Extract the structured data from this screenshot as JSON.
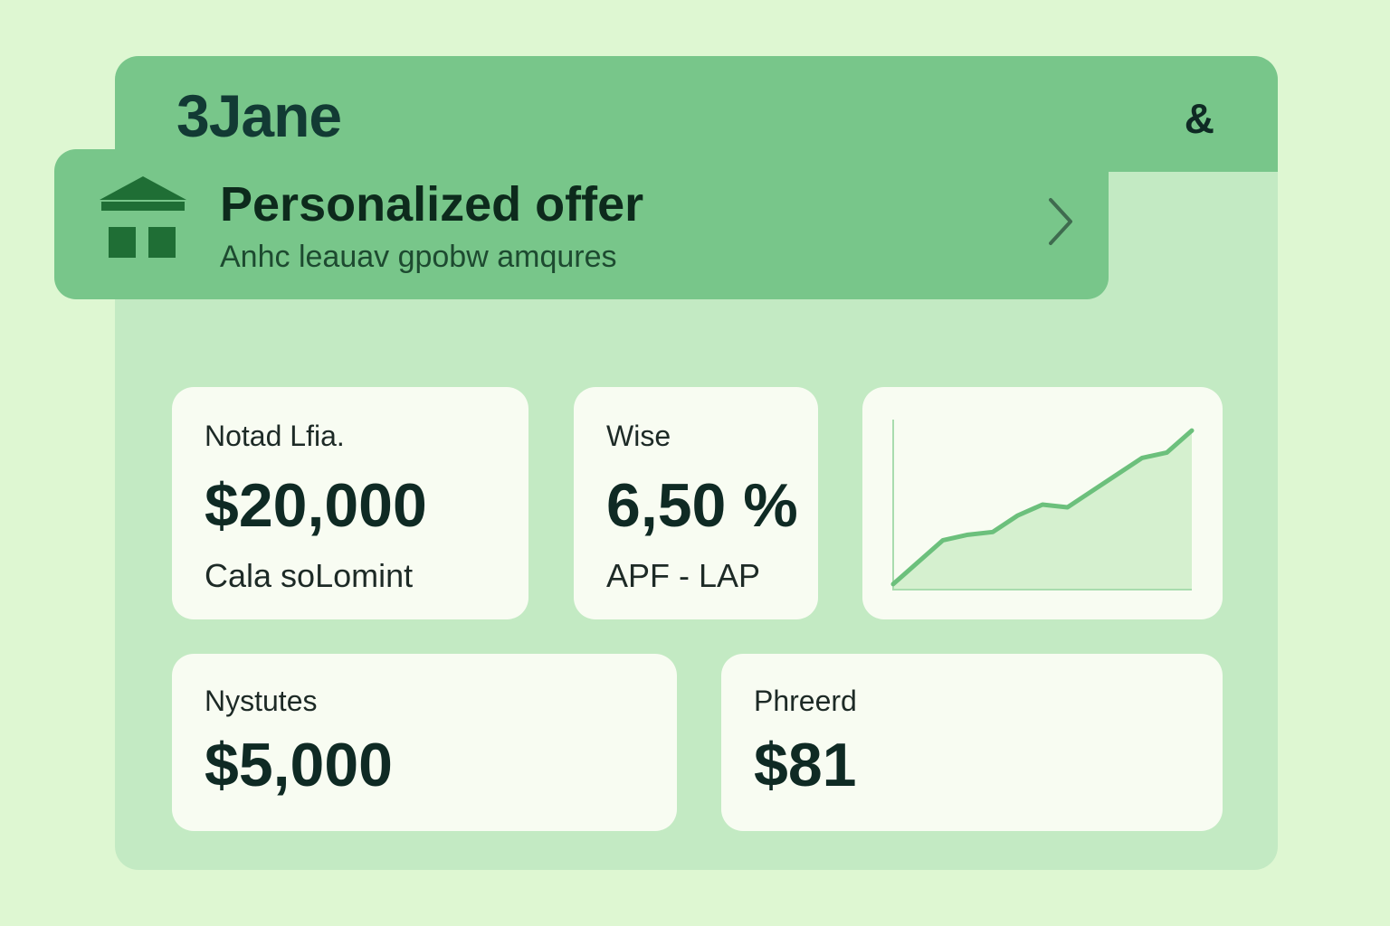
{
  "header": {
    "title": "3Jane",
    "action_label": "&"
  },
  "offer": {
    "title": "Personalized offer",
    "subtitle": "Anhc leauav gpobw amqures",
    "icon": "bank-icon",
    "chevron_icon": "chevron-right-icon"
  },
  "cards": {
    "loan": {
      "label": "Notad Lfia.",
      "value": "$20,000",
      "note": "Cala soLomint"
    },
    "rate": {
      "label": "Wise",
      "value": "6,50 %",
      "note": "APF - LAP"
    },
    "payment": {
      "label": "Nystutes",
      "value": "$5,000"
    },
    "price": {
      "label": "Phreerd",
      "value": "$81"
    }
  },
  "colors": {
    "page_bg": "#def7d2",
    "panel_bg": "#c3eac3",
    "header_bg": "#78c68a",
    "card_bg": "#f8fcf2",
    "text_dark": "#0f2a24",
    "line": "#6cc07c",
    "area": "#d5f0cf"
  },
  "chart_data": {
    "type": "area",
    "x": [
      0,
      1,
      2,
      3,
      4,
      5,
      6,
      7,
      8,
      9,
      10,
      11,
      12
    ],
    "values": [
      2,
      10,
      18,
      20,
      21,
      27,
      31,
      30,
      36,
      42,
      48,
      50,
      58
    ],
    "ylim": [
      0,
      62
    ],
    "grid": false,
    "title": "",
    "xlabel": "",
    "ylabel": ""
  }
}
